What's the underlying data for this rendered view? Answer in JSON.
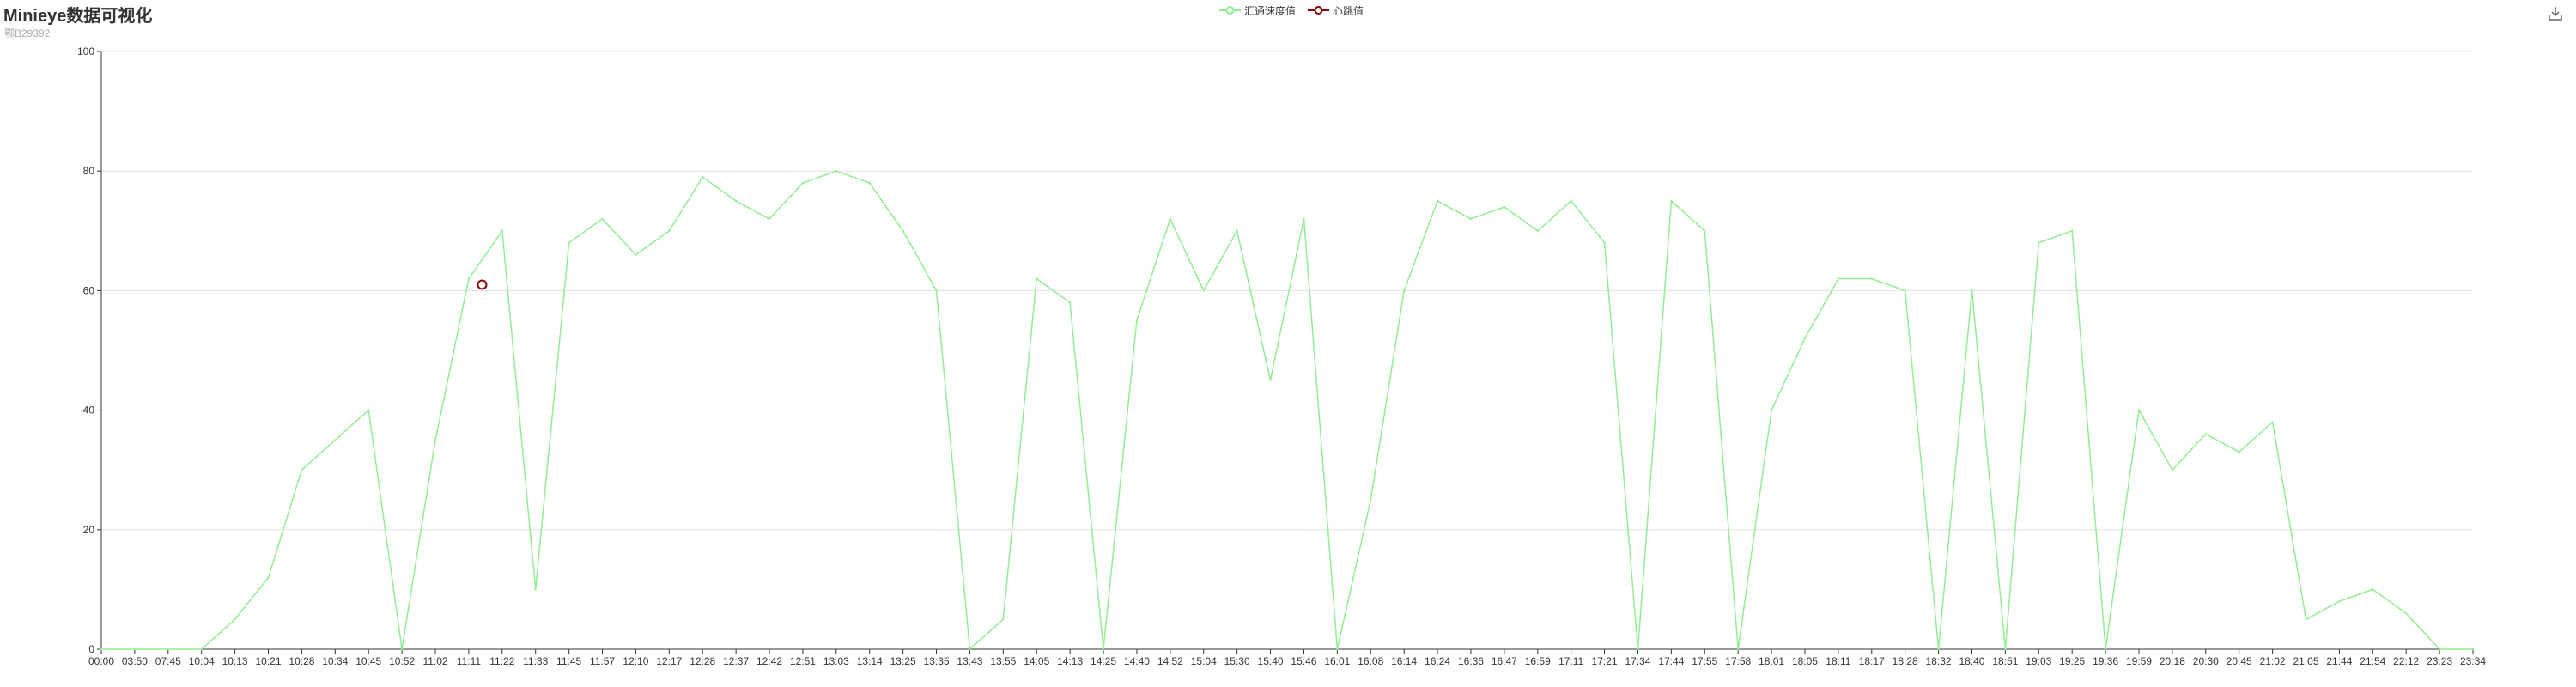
{
  "chart_data": {
    "type": "line",
    "title": "Minieye数据可视化",
    "subtitle": "鄂B29392",
    "legend": [
      "汇通速度值",
      "心跳值"
    ],
    "colors": {
      "speed": "#90ee90",
      "heartbeat": "#8b0000"
    },
    "ylim": [
      0,
      100
    ],
    "y_ticks": [
      0,
      20,
      40,
      60,
      80,
      100
    ],
    "x_ticks": [
      "00:00",
      "03:50",
      "07:45",
      "10:04",
      "10:13",
      "10:21",
      "10:28",
      "10:34",
      "10:45",
      "10:52",
      "11:02",
      "11:11",
      "11:22",
      "11:33",
      "11:45",
      "11:57",
      "12:10",
      "12:17",
      "12:28",
      "12:37",
      "12:42",
      "12:51",
      "13:03",
      "13:14",
      "13:25",
      "13:35",
      "13:43",
      "13:55",
      "14:05",
      "14:13",
      "14:25",
      "14:40",
      "14:52",
      "15:04",
      "15:30",
      "15:40",
      "15:46",
      "16:01",
      "16:08",
      "16:14",
      "16:24",
      "16:36",
      "16:47",
      "16:59",
      "17:11",
      "17:21",
      "17:34",
      "17:44",
      "17:55",
      "17:58",
      "18:01",
      "18:05",
      "18:11",
      "18:17",
      "18:28",
      "18:32",
      "18:40",
      "18:51",
      "19:03",
      "19:25",
      "19:36",
      "19:59",
      "20:18",
      "20:30",
      "20:45",
      "21:02",
      "21:05",
      "21:44",
      "21:54",
      "22:12",
      "23:23",
      "23:34"
    ],
    "series": [
      {
        "name": "汇通速度值",
        "x": [
          0,
          3,
          4,
          5,
          6,
          7,
          8,
          9,
          10,
          11,
          12,
          13,
          14,
          15,
          16,
          17,
          18,
          19,
          20,
          21,
          22,
          23,
          24,
          25,
          26,
          27,
          28,
          29,
          30,
          31,
          32,
          33,
          34,
          35,
          36,
          37,
          38,
          39,
          40,
          41,
          42,
          43,
          44,
          45,
          46,
          47,
          48,
          49,
          50,
          51,
          52,
          53,
          54,
          55,
          56,
          57,
          58,
          59,
          60,
          61,
          62,
          63,
          64,
          65,
          66,
          67,
          68,
          69,
          70,
          71
        ],
        "values": [
          0,
          0,
          5,
          12,
          30,
          35,
          40,
          0,
          35,
          62,
          70,
          10,
          68,
          72,
          66,
          70,
          79,
          75,
          72,
          78,
          80,
          78,
          70,
          60,
          0,
          5,
          62,
          58,
          0,
          55,
          72,
          60,
          70,
          45,
          72,
          0,
          25,
          60,
          75,
          72,
          74,
          70,
          75,
          68,
          0,
          75,
          70,
          0,
          40,
          52,
          62,
          62,
          60,
          0,
          60,
          0,
          68,
          70,
          0,
          40,
          30,
          36,
          33,
          38,
          5,
          8,
          10,
          6,
          0,
          0
        ]
      },
      {
        "name": "心跳值",
        "x": [
          11.4
        ],
        "values": [
          61
        ]
      }
    ]
  }
}
